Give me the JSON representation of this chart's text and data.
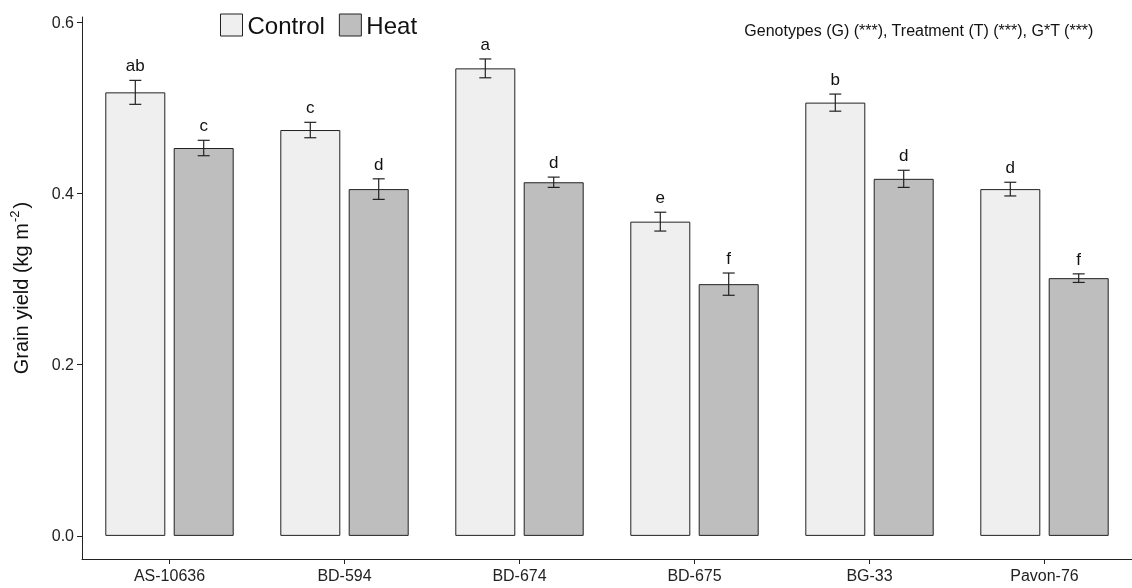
{
  "chart_data": {
    "type": "bar",
    "ylabel": "Grain yield (kg m$^{-2}$)",
    "annotations": [
      "Genotypes (G) (***), Treatment (T) (***), G*T (***)"
    ],
    "categories": [
      "AS-10636",
      "BD-594",
      "BD-674",
      "BD-675",
      "BG-33",
      "Pavon-76"
    ],
    "series": [
      {
        "name": "Control",
        "color": "#efefef",
        "values": [
          0.518,
          0.474,
          0.546,
          0.367,
          0.506,
          0.405
        ],
        "errors": [
          0.014,
          0.009,
          0.011,
          0.011,
          0.01,
          0.008
        ],
        "value_labels": [
          "ab",
          "c",
          "a",
          "e",
          "b",
          "d"
        ]
      },
      {
        "name": "Heat",
        "color": "#bebebe",
        "values": [
          0.453,
          0.405,
          0.413,
          0.294,
          0.417,
          0.301
        ],
        "errors": [
          0.009,
          0.012,
          0.006,
          0.013,
          0.01,
          0.005
        ],
        "value_labels": [
          "c",
          "d",
          "d",
          "f",
          "d",
          "f"
        ]
      }
    ],
    "ylim": [
      -0.027,
      0.606
    ],
    "yticks": [
      {
        "value": 0,
        "label": "0.0"
      },
      0.2,
      0.4,
      0.6
    ],
    "legend": "top left",
    "grid": false
  }
}
